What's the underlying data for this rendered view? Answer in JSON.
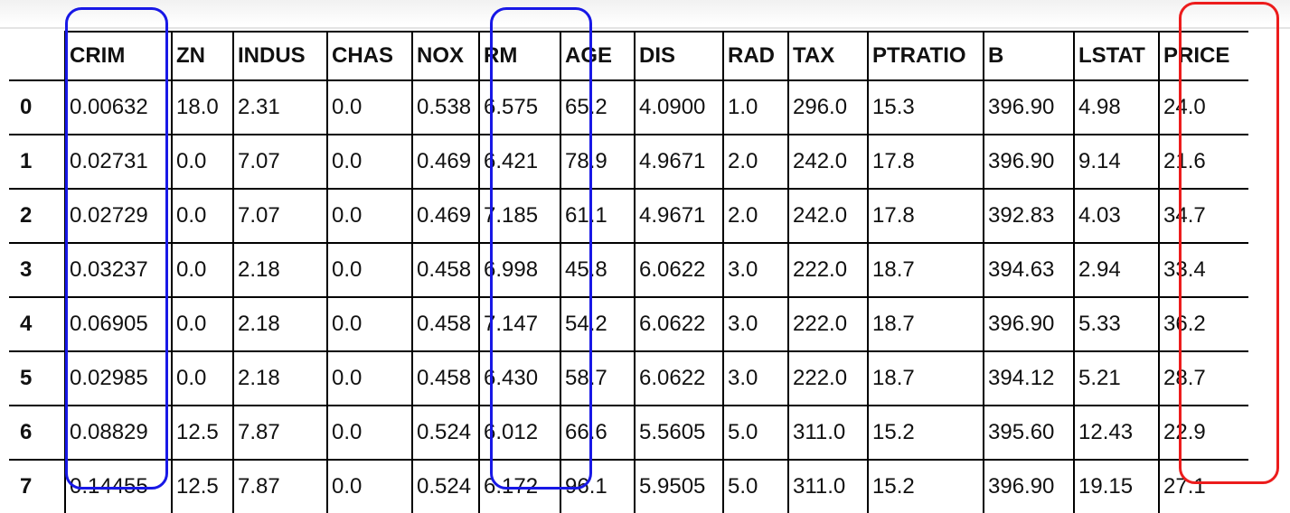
{
  "table": {
    "columns": [
      "",
      "CRIM",
      "ZN",
      "INDUS",
      "CHAS",
      "NOX",
      "RM",
      "AGE",
      "DIS",
      "RAD",
      "TAX",
      "PTRATIO",
      "B",
      "LSTAT",
      "PRICE"
    ],
    "rows": [
      [
        "0",
        "0.00632",
        "18.0",
        "2.31",
        "0.0",
        "0.538",
        "6.575",
        "65.2",
        "4.0900",
        "1.0",
        "296.0",
        "15.3",
        "396.90",
        "4.98",
        "24.0"
      ],
      [
        "1",
        "0.02731",
        "0.0",
        "7.07",
        "0.0",
        "0.469",
        "6.421",
        "78.9",
        "4.9671",
        "2.0",
        "242.0",
        "17.8",
        "396.90",
        "9.14",
        "21.6"
      ],
      [
        "2",
        "0.02729",
        "0.0",
        "7.07",
        "0.0",
        "0.469",
        "7.185",
        "61.1",
        "4.9671",
        "2.0",
        "242.0",
        "17.8",
        "392.83",
        "4.03",
        "34.7"
      ],
      [
        "3",
        "0.03237",
        "0.0",
        "2.18",
        "0.0",
        "0.458",
        "6.998",
        "45.8",
        "6.0622",
        "3.0",
        "222.0",
        "18.7",
        "394.63",
        "2.94",
        "33.4"
      ],
      [
        "4",
        "0.06905",
        "0.0",
        "2.18",
        "0.0",
        "0.458",
        "7.147",
        "54.2",
        "6.0622",
        "3.0",
        "222.0",
        "18.7",
        "396.90",
        "5.33",
        "36.2"
      ],
      [
        "5",
        "0.02985",
        "0.0",
        "2.18",
        "0.0",
        "0.458",
        "6.430",
        "58.7",
        "6.0622",
        "3.0",
        "222.0",
        "18.7",
        "394.12",
        "5.21",
        "28.7"
      ],
      [
        "6",
        "0.08829",
        "12.5",
        "7.87",
        "0.0",
        "0.524",
        "6.012",
        "66.6",
        "5.5605",
        "5.0",
        "311.0",
        "15.2",
        "395.60",
        "12.43",
        "22.9"
      ],
      [
        "7",
        "0.14455",
        "12.5",
        "7.87",
        "0.0",
        "0.524",
        "6.172",
        "96.1",
        "5.9505",
        "5.0",
        "311.0",
        "15.2",
        "396.90",
        "19.15",
        "27.1"
      ]
    ]
  },
  "highlights": {
    "crim_color": "#1818e6",
    "rm_color": "#1818e6",
    "price_color": "#ec1c1c"
  }
}
